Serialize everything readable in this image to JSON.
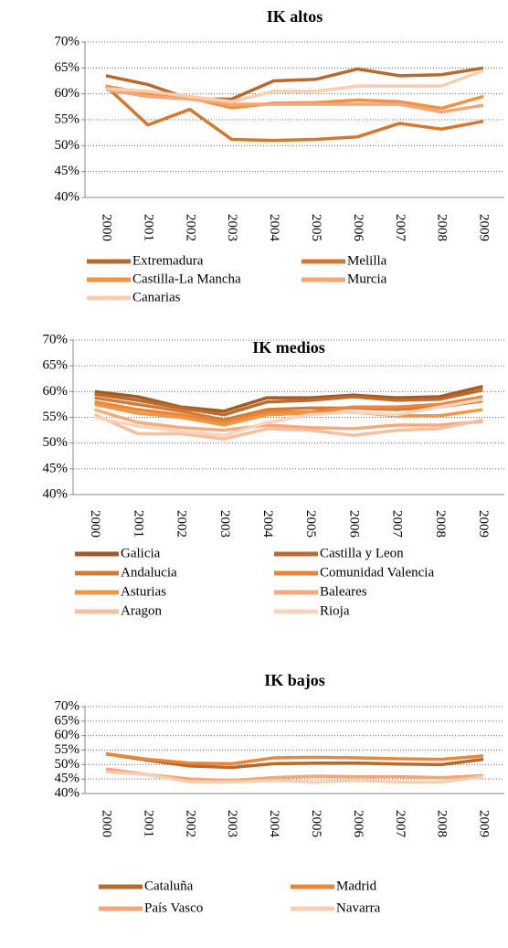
{
  "chart_data": [
    {
      "type": "line",
      "title": "IK altos",
      "grid": true,
      "legend": "bottom",
      "categories": [
        "2000",
        "2001",
        "2002",
        "2003",
        "2004",
        "2005",
        "2006",
        "2007",
        "2008",
        "2009"
      ],
      "ylim": [
        40,
        70
      ],
      "yticks": [
        {
          "value": 40,
          "label": "40%"
        },
        {
          "value": 45,
          "label": "45%"
        },
        {
          "value": 50,
          "label": "50%"
        },
        {
          "value": 55,
          "label": "55%"
        },
        {
          "value": 60,
          "label": "60%"
        },
        {
          "value": 65,
          "label": "65%"
        },
        {
          "value": 70,
          "label": "70%"
        }
      ],
      "series": [
        {
          "name": "Extremadura",
          "color": "#b8692e",
          "values": [
            63.5,
            61.8,
            59,
            59,
            62.5,
            62.8,
            64.8,
            63.5,
            63.7,
            65
          ]
        },
        {
          "name": "Melilla",
          "color": "#d4782e",
          "values": [
            61.5,
            54,
            57,
            51.2,
            51,
            51.2,
            51.7,
            54.3,
            53.2,
            54.7
          ]
        },
        {
          "name": "Castilla-La Mancha",
          "color": "#f29240",
          "values": [
            61.5,
            60,
            59.2,
            57.3,
            58.2,
            58.3,
            58.8,
            58.5,
            57.2,
            59.5
          ]
        },
        {
          "name": "Murcia",
          "color": "#f4a57a",
          "values": [
            60.8,
            59.5,
            59,
            58,
            58,
            58,
            58,
            58,
            56.5,
            57.8
          ]
        },
        {
          "name": "Canarias",
          "color": "#f8cdb0",
          "values": [
            61,
            60.5,
            59.5,
            58.5,
            60.5,
            60.5,
            61.5,
            61.5,
            61.5,
            64.5
          ]
        }
      ]
    },
    {
      "type": "line",
      "title": "IK medios",
      "grid": true,
      "legend": "bottom",
      "categories": [
        "2000",
        "2001",
        "2002",
        "2003",
        "2004",
        "2005",
        "2006",
        "2007",
        "2008",
        "2009"
      ],
      "ylim": [
        40,
        70
      ],
      "yticks": [
        {
          "value": 40,
          "label": "40%"
        },
        {
          "value": 45,
          "label": "45%"
        },
        {
          "value": 50,
          "label": "50%"
        },
        {
          "value": 55,
          "label": "55%"
        },
        {
          "value": 60,
          "label": "60%"
        },
        {
          "value": 65,
          "label": "65%"
        },
        {
          "value": 70,
          "label": "70%"
        }
      ],
      "series": [
        {
          "name": "Galicia",
          "color": "#a35a24",
          "values": [
            60,
            59,
            57,
            56.2,
            58.8,
            58.8,
            59.3,
            58.8,
            59,
            61
          ]
        },
        {
          "name": "Castilla y Leon",
          "color": "#bd6a2c",
          "values": [
            59.5,
            58.3,
            56.8,
            55.5,
            58,
            58.3,
            59,
            58.3,
            58.5,
            60.3
          ]
        },
        {
          "name": "Andalucia",
          "color": "#d47a34",
          "values": [
            58.8,
            57.5,
            56.2,
            54.5,
            56.5,
            56.8,
            56.8,
            56.5,
            57,
            58.2
          ]
        },
        {
          "name": "Comunidad Valencia",
          "color": "#e8863a",
          "values": [
            58,
            56.5,
            55.5,
            54,
            56,
            56,
            57,
            57,
            57.5,
            59
          ]
        },
        {
          "name": "Asturias",
          "color": "#f39644",
          "values": [
            57.5,
            55.8,
            55,
            53.5,
            55.5,
            55.8,
            56,
            55.3,
            55.3,
            56.5
          ]
        },
        {
          "name": "Baleares",
          "color": "#f5aa7a",
          "values": [
            56.5,
            54,
            53,
            52.5,
            53.5,
            53,
            52.8,
            53.5,
            53.5,
            54.2
          ]
        },
        {
          "name": "Aragon",
          "color": "#f7bf9d",
          "values": [
            55.5,
            51.8,
            51.8,
            50.8,
            52.8,
            52.5,
            51.5,
            52.5,
            52.8,
            54.5
          ]
        },
        {
          "name": "Rioja",
          "color": "#f9d3bc",
          "values": [
            55,
            53.3,
            52.3,
            51.5,
            54,
            55.5,
            56,
            55.5,
            57,
            58.5
          ]
        }
      ]
    },
    {
      "type": "line",
      "title": "IK bajos",
      "grid": true,
      "legend": "bottom",
      "categories": [
        "2000",
        "2001",
        "2002",
        "2003",
        "2004",
        "2005",
        "2006",
        "2007",
        "2008",
        "2009"
      ],
      "ylim": [
        40,
        70
      ],
      "yticks": [
        {
          "value": 40,
          "label": "40%"
        },
        {
          "value": 45,
          "label": "45%"
        },
        {
          "value": 50,
          "label": "50%"
        },
        {
          "value": 55,
          "label": "55%"
        },
        {
          "value": 60,
          "label": "60%"
        },
        {
          "value": 65,
          "label": "65%"
        },
        {
          "value": 70,
          "label": "70%"
        }
      ],
      "series": [
        {
          "name": "Cataluña",
          "color": "#b8692e",
          "values": [
            53.7,
            51.5,
            49.5,
            49,
            50.3,
            50.5,
            50.5,
            50.2,
            50,
            51.8
          ]
        },
        {
          "name": "Madrid",
          "color": "#e8863a",
          "values": [
            53.7,
            51.8,
            50.5,
            50.3,
            52.3,
            52.5,
            52.3,
            52,
            51.8,
            53
          ]
        },
        {
          "name": "País Vasco",
          "color": "#f4a57a",
          "values": [
            48.5,
            46.5,
            45,
            44.5,
            45.5,
            46,
            45.8,
            45.8,
            45.5,
            46.2
          ]
        },
        {
          "name": "Navarra",
          "color": "#f8cdb0",
          "values": [
            47.5,
            46.5,
            44,
            44,
            44.5,
            44,
            44.5,
            44,
            44,
            45.8
          ]
        }
      ]
    }
  ]
}
